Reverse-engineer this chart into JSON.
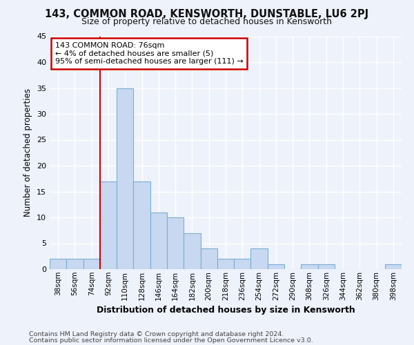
{
  "title": "143, COMMON ROAD, KENSWORTH, DUNSTABLE, LU6 2PJ",
  "subtitle": "Size of property relative to detached houses in Kensworth",
  "xlabel": "Distribution of detached houses by size in Kensworth",
  "ylabel": "Number of detached properties",
  "bar_color": "#c8d8f0",
  "bar_edge_color": "#7aaed4",
  "background_color": "#eef2fb",
  "grid_color": "#ffffff",
  "categories": [
    "38sqm",
    "56sqm",
    "74sqm",
    "92sqm",
    "110sqm",
    "128sqm",
    "146sqm",
    "164sqm",
    "182sqm",
    "200sqm",
    "218sqm",
    "236sqm",
    "254sqm",
    "272sqm",
    "290sqm",
    "308sqm",
    "326sqm",
    "344sqm",
    "362sqm",
    "380sqm",
    "398sqm"
  ],
  "values": [
    2,
    2,
    2,
    17,
    35,
    17,
    11,
    10,
    7,
    4,
    2,
    2,
    4,
    1,
    0,
    1,
    1,
    0,
    0,
    0,
    1
  ],
  "ylim": [
    0,
    45
  ],
  "yticks": [
    0,
    5,
    10,
    15,
    20,
    25,
    30,
    35,
    40,
    45
  ],
  "annotation_title": "143 COMMON ROAD: 76sqm",
  "annotation_line1": "← 4% of detached houses are smaller (5)",
  "annotation_line2": "95% of semi-detached houses are larger (111) →",
  "vline_x_idx": 3,
  "footer1": "Contains HM Land Registry data © Crown copyright and database right 2024.",
  "footer2": "Contains public sector information licensed under the Open Government Licence v3.0.",
  "annotation_box_color": "#cc0000",
  "annotation_bg": "#ffffff",
  "vline_color": "#cc0000"
}
